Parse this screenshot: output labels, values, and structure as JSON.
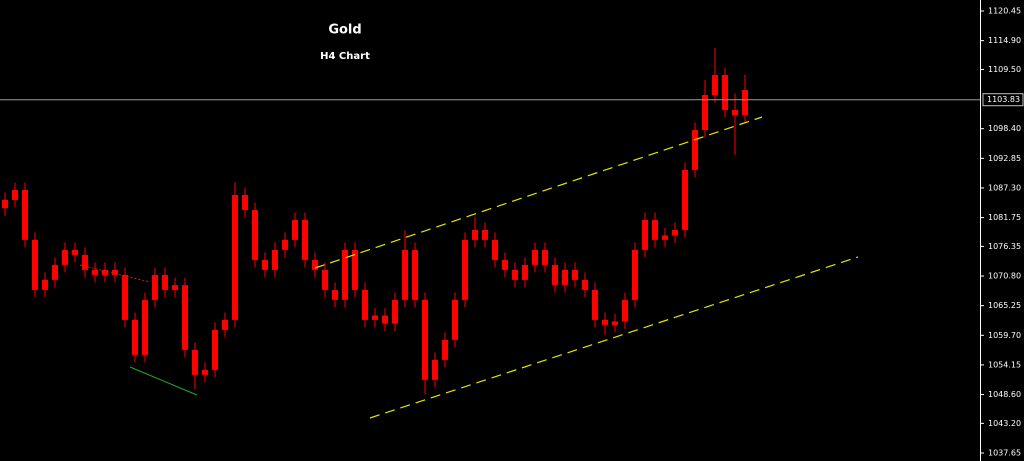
{
  "chart_data": {
    "type": "candlestick",
    "title": "Gold",
    "subtitle": "H4 Chart",
    "color": "#ff0000",
    "ylim": [
      1036.15,
      1122.51
    ],
    "yticks": [
      1120.45,
      {
        "value": 1114.9,
        "label": "1114.90"
      },
      {
        "value": 1109.5,
        "label": "1109.50"
      },
      {
        "value": 1098.4,
        "label": "1098.40"
      },
      1092.85,
      {
        "value": 1087.3,
        "label": "1087.30"
      },
      1081.75,
      1076.35,
      {
        "value": 1070.8,
        "label": "1070.80"
      },
      1065.25,
      {
        "value": 1059.7,
        "label": "1059.70"
      },
      1054.15,
      {
        "value": 1048.6,
        "label": "1048.60"
      },
      {
        "value": 1043.2,
        "label": "1043.20"
      },
      1037.65
    ],
    "current_price": 1103.83,
    "open": [
      1083.5,
      1085.06,
      1086.93,
      1077.57,
      1068.2,
      1070.08,
      1072.89,
      1075.7,
      1074.76,
      1071.95,
      1071.01,
      1071.95,
      1071.01,
      1062.58,
      1056.03,
      1066.33,
      1071.01,
      1068.2,
      1069.1,
      1056.97,
      1052.29,
      1053.22,
      1060.71,
      1062.58,
      1085.99,
      1083.18,
      1073.82,
      1071.95,
      1075.7,
      1077.57,
      1081.31,
      1073.82,
      1071.95,
      1068.2,
      1066.33,
      1075.7,
      1068.2,
      1062.58,
      1063.4,
      1061.9,
      1066.33,
      1075.7,
      1066.33,
      1051.35,
      1055.09,
      1058.84,
      1066.33,
      1077.57,
      1079.44,
      1077.57,
      1073.82,
      1071.95,
      1070.08,
      1072.89,
      1075.7,
      1072.89,
      1069.14,
      1071.95,
      1070.08,
      1068.2,
      1062.58,
      1061.65,
      1062.3,
      1066.33,
      1075.7,
      1081.31,
      1077.57,
      1078.4,
      1079.44,
      1090.68,
      1098.16,
      1104.72,
      1108.47,
      1101.91,
      1100.97
    ],
    "high": [
      1086.46,
      1088.33,
      1088.33,
      1078.97,
      1071.48,
      1074.29,
      1077.1,
      1077.1,
      1076.16,
      1073.35,
      1073.35,
      1073.35,
      1072.41,
      1063.98,
      1067.73,
      1072.41,
      1072.41,
      1070.5,
      1070.5,
      1058.37,
      1054.62,
      1062.11,
      1063.98,
      1088.4,
      1087.39,
      1084.58,
      1075.22,
      1077.1,
      1078.97,
      1082.71,
      1082.71,
      1075.22,
      1073.35,
      1069.6,
      1077.1,
      1077.1,
      1069.6,
      1064.8,
      1064.8,
      1067.73,
      1079.4,
      1077.1,
      1067.73,
      1056.49,
      1060.24,
      1067.73,
      1078.97,
      1081.9,
      1080.84,
      1078.97,
      1075.22,
      1073.35,
      1074.29,
      1077.1,
      1077.1,
      1074.29,
      1073.35,
      1073.35,
      1071.48,
      1069.6,
      1063.98,
      1063.7,
      1067.73,
      1077.1,
      1082.71,
      1082.71,
      1079.8,
      1080.84,
      1092.08,
      1099.56,
      1107.5,
      1113.5,
      1109.87,
      1105.0,
      1108.5
    ],
    "low": [
      1082.1,
      1083.66,
      1076.17,
      1066.8,
      1066.8,
      1068.68,
      1071.49,
      1073.36,
      1070.55,
      1069.61,
      1069.61,
      1069.61,
      1061.18,
      1054.63,
      1054.63,
      1064.93,
      1066.8,
      1066.8,
      1055.57,
      1049.6,
      1050.89,
      1051.82,
      1059.31,
      1061.18,
      1081.78,
      1072.42,
      1070.55,
      1070.55,
      1074.3,
      1076.17,
      1072.42,
      1070.55,
      1066.8,
      1064.93,
      1064.93,
      1066.8,
      1061.18,
      1061.18,
      1060.5,
      1060.5,
      1064.93,
      1064.93,
      1048.6,
      1049.95,
      1053.69,
      1057.44,
      1064.93,
      1076.17,
      1076.17,
      1072.42,
      1070.55,
      1068.68,
      1068.68,
      1071.49,
      1071.49,
      1067.74,
      1067.74,
      1068.68,
      1066.8,
      1061.18,
      1059.8,
      1060.25,
      1060.9,
      1064.93,
      1074.3,
      1076.17,
      1076.17,
      1077.0,
      1078.04,
      1089.28,
      1096.76,
      1103.32,
      1100.51,
      1093.5,
      1099.57
    ],
    "close": [
      1085.06,
      1086.93,
      1077.57,
      1068.2,
      1070.08,
      1072.89,
      1075.7,
      1074.76,
      1071.95,
      1071.01,
      1071.95,
      1071.01,
      1062.58,
      1056.03,
      1066.33,
      1071.01,
      1068.2,
      1069.1,
      1056.97,
      1052.29,
      1053.22,
      1060.71,
      1062.58,
      1085.99,
      1083.18,
      1073.82,
      1071.95,
      1075.7,
      1077.57,
      1081.31,
      1073.82,
      1071.95,
      1068.2,
      1066.33,
      1075.7,
      1068.2,
      1062.58,
      1063.4,
      1061.9,
      1066.33,
      1075.7,
      1066.33,
      1051.35,
      1055.09,
      1058.84,
      1066.33,
      1077.57,
      1079.44,
      1077.57,
      1073.82,
      1071.95,
      1070.08,
      1072.89,
      1075.7,
      1072.89,
      1069.14,
      1071.95,
      1070.08,
      1068.2,
      1062.58,
      1061.65,
      1062.3,
      1066.33,
      1075.7,
      1081.31,
      1077.57,
      1078.4,
      1079.44,
      1090.68,
      1098.16,
      1104.72,
      1108.47,
      1101.91,
      1100.97,
      1105.66
    ]
  }
}
